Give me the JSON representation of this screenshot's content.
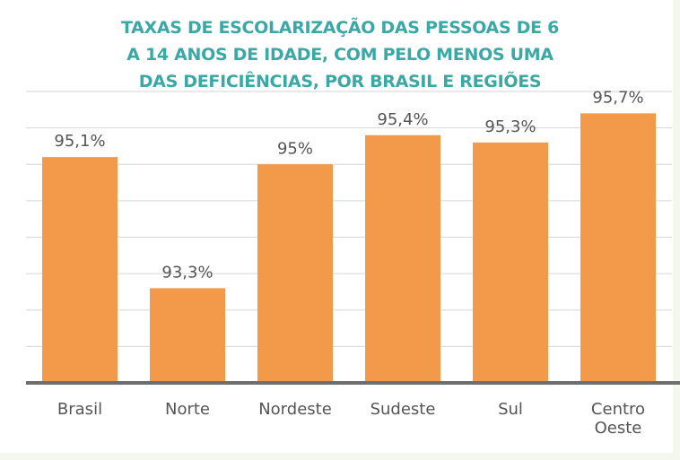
{
  "chart_data": {
    "type": "bar",
    "title": "TAXAS DE ESCOLARIZAÇÃO DAS PESSOAS DE 6 A 14 ANOS DE IDADE, COM PELO MENOS UMA DAS DEFICIÊNCIAS, POR BRASIL E REGIÕES",
    "categories": [
      "Brasil",
      "Norte",
      "Nordeste",
      "Sudeste",
      "Sul",
      "Centro Oeste"
    ],
    "values": [
      95.1,
      93.3,
      95,
      95.4,
      95.3,
      95.7
    ],
    "value_labels": [
      "95,1%",
      "93,3%",
      "95%",
      "95,4%",
      "95,3%",
      "95,7%"
    ],
    "color": "#f29a4a",
    "ylim": [
      92,
      96
    ],
    "yticks": [
      92.5,
      93,
      93.5,
      94,
      94.5,
      95,
      95.5,
      96
    ],
    "grid": true
  }
}
